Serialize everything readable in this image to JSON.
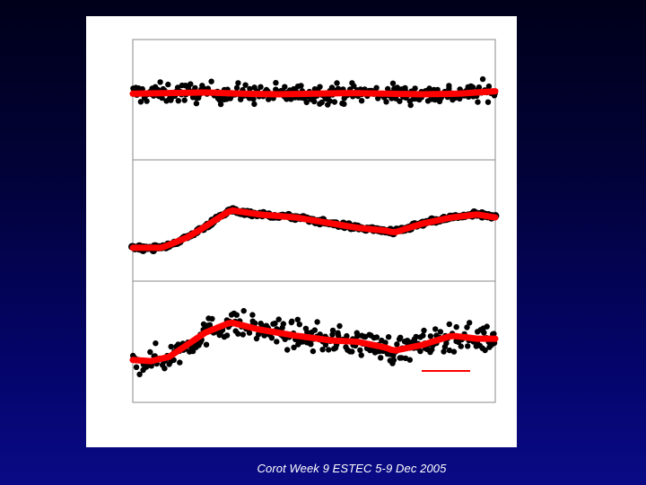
{
  "slide": {
    "footer": "Corot Week 9 ESTEC 5-9 Dec 2005"
  },
  "colors": {
    "background_top": "#00001a",
    "background_bottom": "#0a0a86",
    "panel": "#ffffff",
    "points": "#000000",
    "fit_line": "#ff0000",
    "scale_bar": "#ff0000"
  },
  "chart_data": [
    {
      "type": "scatter",
      "title": "",
      "xlabel": "",
      "ylabel": "",
      "xlim": [
        0,
        100
      ],
      "ylim": [
        -1,
        1
      ],
      "grid": false,
      "legend": "none",
      "points_scatter_amplitude": 0.28,
      "series": [
        {
          "role": "fit",
          "x": [
            0,
            10,
            20,
            30,
            40,
            50,
            60,
            70,
            80,
            90,
            100
          ],
          "y": [
            0.1,
            0.11,
            0.12,
            0.1,
            0.09,
            0.1,
            0.11,
            0.1,
            0.09,
            0.1,
            0.14
          ]
        }
      ]
    },
    {
      "type": "scatter",
      "title": "",
      "xlabel": "",
      "ylabel": "",
      "xlim": [
        0,
        100
      ],
      "ylim": [
        -1,
        1
      ],
      "grid": false,
      "legend": "none",
      "points_scatter_amplitude": 0.06,
      "series": [
        {
          "role": "fit",
          "x": [
            0,
            8,
            15,
            20,
            27,
            35,
            45,
            55,
            62,
            70,
            72,
            80,
            88,
            95,
            100
          ],
          "y": [
            -0.45,
            -0.45,
            -0.28,
            -0.1,
            0.17,
            0.1,
            0.05,
            -0.05,
            -0.12,
            -0.17,
            -0.2,
            -0.05,
            0.05,
            0.1,
            0.05
          ]
        }
      ]
    },
    {
      "type": "scatter",
      "title": "",
      "xlabel": "",
      "ylabel": "",
      "xlim": [
        0,
        100
      ],
      "ylim": [
        -1,
        1
      ],
      "grid": false,
      "legend": "none",
      "points_scatter_amplitude": 0.38,
      "series": [
        {
          "role": "fit",
          "x": [
            0,
            5,
            10,
            15,
            20,
            27,
            35,
            45,
            55,
            62,
            70,
            72,
            80,
            88,
            95,
            100
          ],
          "y": [
            -0.3,
            -0.32,
            -0.25,
            -0.05,
            0.15,
            0.32,
            0.2,
            0.1,
            0.02,
            0.0,
            -0.1,
            -0.15,
            -0.05,
            0.1,
            0.05,
            0.05
          ]
        }
      ]
    }
  ]
}
